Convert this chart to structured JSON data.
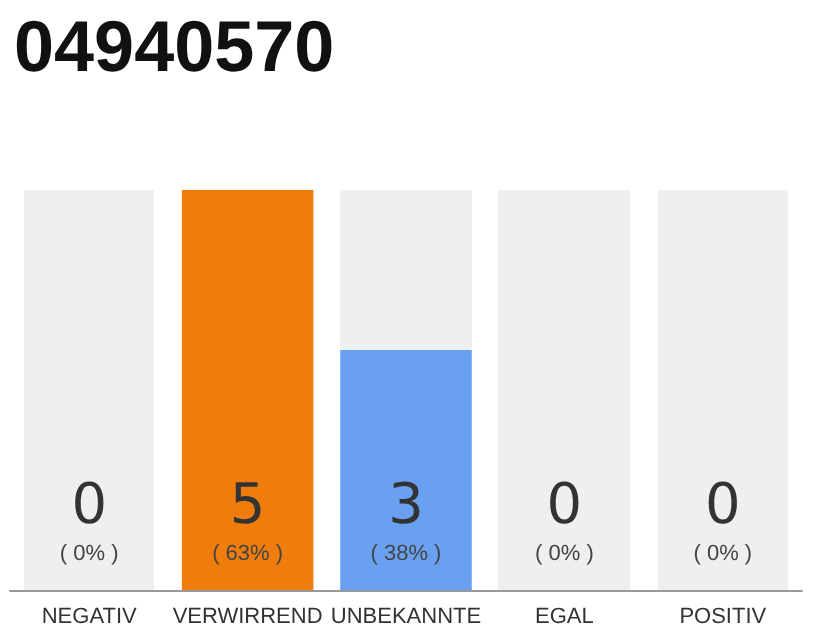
{
  "chart_data": {
    "type": "bar",
    "title": "04940570",
    "categories": [
      "NEGATIV",
      "VERWIRREND",
      "UNBEKANNTE",
      "EGAL",
      "POSITIV"
    ],
    "values": [
      0,
      5,
      3,
      0,
      0
    ],
    "colors": [
      "#efefef",
      "#f07d0b",
      "#6aa0f0",
      "#efefef",
      "#efefef"
    ],
    "value_labels": [
      "0\n( 0% )",
      "5\n( 63% )",
      "3\n( 38% )",
      "0\n( 0% )",
      "0\n( 0% )"
    ],
    "ylim": [
      0,
      5
    ],
    "tick_labels": "x",
    "grid": false
  }
}
